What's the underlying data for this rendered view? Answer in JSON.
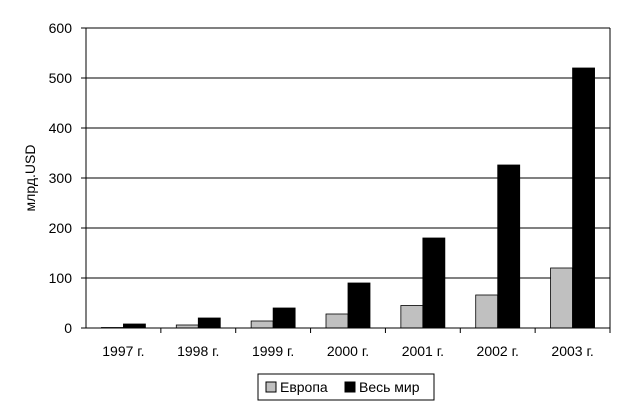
{
  "chart_data": {
    "type": "bar",
    "title": "",
    "xlabel": "",
    "ylabel": "млрд.USD",
    "categories": [
      "1997 г.",
      "1998 г.",
      "1999 г.",
      "2000 г.",
      "2001 г.",
      "2002 г.",
      "2003 г."
    ],
    "series": [
      {
        "name": "Европа",
        "color": "#c0c0c0",
        "values": [
          1,
          6,
          14,
          28,
          45,
          66,
          120
        ]
      },
      {
        "name": "Весь мир",
        "color": "#000000",
        "values": [
          8,
          20,
          40,
          90,
          180,
          326,
          520
        ]
      }
    ],
    "ylim": [
      0,
      600
    ],
    "yticks": [
      0,
      100,
      200,
      300,
      400,
      500,
      600
    ],
    "grid": true,
    "legend_position": "bottom"
  }
}
